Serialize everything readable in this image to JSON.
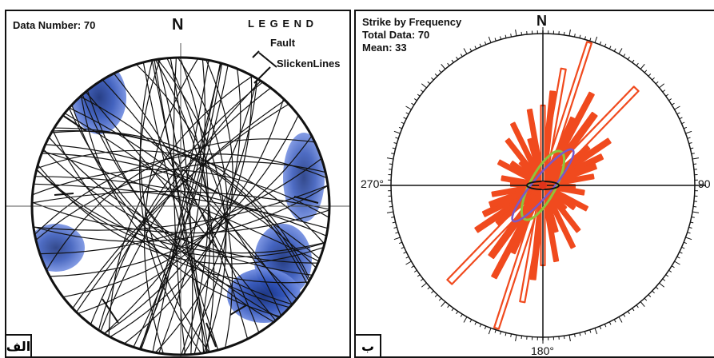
{
  "left_panel": {
    "data_number": "Data Number: 70",
    "north": "N",
    "legend_title": "L E G E N D",
    "legend_fault": "Fault",
    "legend_slickenlines": "SlickenLines",
    "corner_label": "الف"
  },
  "right_panel": {
    "title": "Strike by Frequency",
    "total": "Total Data: 70",
    "mean": "Mean: 33",
    "north": "N",
    "west": "270°",
    "east": "90",
    "south": "180°",
    "corner_label": "ب"
  },
  "colors": {
    "petal": "#f04a1e",
    "density": "#2f52b8",
    "great_circle": "#111111",
    "overlay_green": "#8fc43a",
    "overlay_purple": "#7a58c9"
  }
}
